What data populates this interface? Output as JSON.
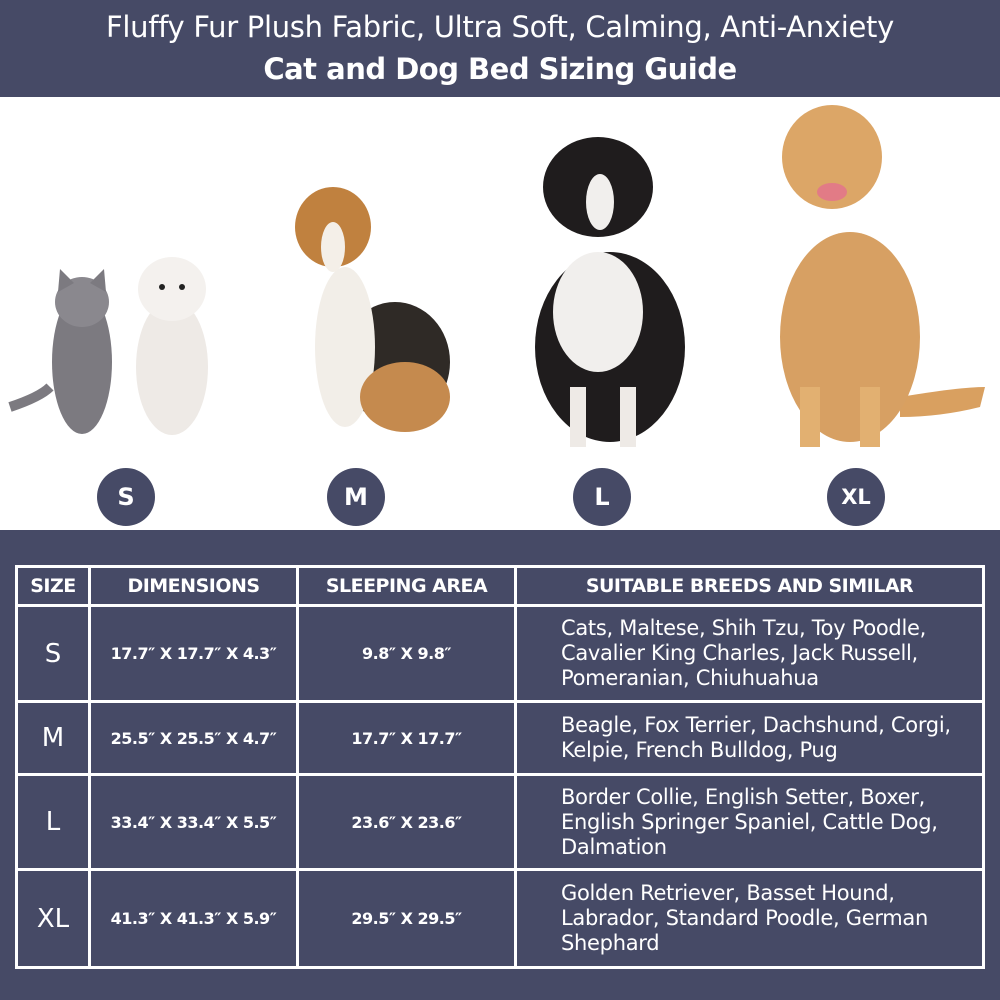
{
  "header": {
    "line1": "Fluffy Fur Plush Fabric, Ultra Soft, Calming, Anti-Anxiety",
    "line2": "Cat and Dog Bed Sizing Guide"
  },
  "colors": {
    "primary": "#464a66",
    "text": "#ffffff"
  },
  "animals": [
    {
      "size": "S",
      "badge": "S",
      "depicts": [
        "cat",
        "maltese"
      ]
    },
    {
      "size": "M",
      "badge": "M",
      "depicts": [
        "beagle"
      ]
    },
    {
      "size": "L",
      "badge": "L",
      "depicts": [
        "border-collie"
      ]
    },
    {
      "size": "XL",
      "badge": "XL",
      "depicts": [
        "golden-retriever"
      ]
    }
  ],
  "table": {
    "headers": [
      "SIZE",
      "DIMENSIONS",
      "SLEEPING AREA",
      "SUITABLE BREEDS AND SIMILAR"
    ],
    "rows": [
      {
        "size": "S",
        "dimensions": "17.7″ X 17.7″ X 4.3″",
        "area": "9.8″ X 9.8″",
        "breeds": "Cats, Maltese, Shih Tzu, Toy Poodle, Cavalier King Charles, Jack Russell, Pomeranian, Chiuhuahua"
      },
      {
        "size": "M",
        "dimensions": "25.5″ X 25.5″ X 4.7″",
        "area": "17.7″ X 17.7″",
        "breeds": "Beagle, Fox Terrier, Dachshund, Corgi, Kelpie, French Bulldog, Pug"
      },
      {
        "size": "L",
        "dimensions": "33.4″ X 33.4″ X 5.5″",
        "area": "23.6″ X 23.6″",
        "breeds": "Border Collie, English Setter, Boxer, English Springer Spaniel, Cattle Dog, Dalmation"
      },
      {
        "size": "XL",
        "dimensions": "41.3″ X 41.3″ X 5.9″",
        "area": "29.5″ X 29.5″",
        "breeds": "Golden Retriever, Basset Hound, Labrador, Standard Poodle, German Shephard"
      }
    ]
  }
}
